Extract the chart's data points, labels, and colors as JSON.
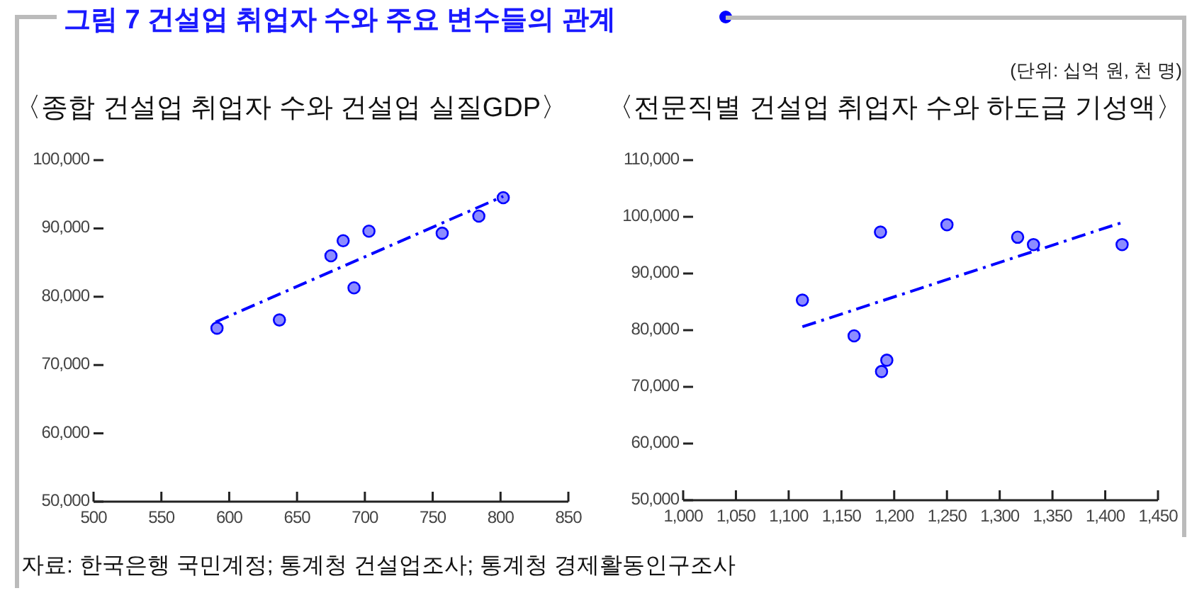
{
  "chart_data": [
    {
      "type": "scatter",
      "title": "〈종합 건설업 취업자 수와 건설업 실질GDP〉",
      "annotations": [
        "그림 7 건설업 취업자 수와 주요 변수들의 관계",
        "자료: 한국은행 국민계정; 통계청 건설업조사; 통계청 경제활동인구조사"
      ],
      "xlim": [
        500,
        850
      ],
      "xticks": [
        500,
        550,
        600,
        650,
        700,
        750,
        800,
        850
      ],
      "ylim": [
        50000,
        100000
      ],
      "yticks": [
        {
          "value": 50000,
          "label": "50,000"
        },
        {
          "value": 60000,
          "label": "60,000"
        },
        {
          "value": 70000,
          "label": "70,000"
        },
        {
          "value": 80000,
          "label": "80,000"
        },
        {
          "value": 90000,
          "label": "90,000"
        },
        {
          "value": 100000,
          "label": "100,000"
        }
      ],
      "series": [
        {
          "type": "scatter",
          "marker": "circle",
          "color": "#8c8cff",
          "x": [
            591,
            637,
            675,
            684,
            692,
            703,
            757,
            784,
            802
          ],
          "values": [
            75400,
            76600,
            86000,
            88200,
            81300,
            89600,
            89300,
            91800,
            94500
          ]
        },
        {
          "type": "line",
          "color": "#0000ff",
          "line_style": "dashed",
          "x": [
            590,
            802
          ],
          "values": [
            76300,
            94700
          ]
        }
      ]
    },
    {
      "type": "scatter",
      "title": "〈전문직별 건설업 취업자 수와 하도급 기성액〉",
      "annotations": [
        "(단위: 십억 원, 천 명)"
      ],
      "xlim": [
        1000,
        1450
      ],
      "xticks": [
        {
          "value": 1000,
          "label": "1,000"
        },
        {
          "value": 1050,
          "label": "1,050"
        },
        {
          "value": 1100,
          "label": "1,100"
        },
        {
          "value": 1150,
          "label": "1,150"
        },
        {
          "value": 1200,
          "label": "1,200"
        },
        {
          "value": 1250,
          "label": "1,250"
        },
        {
          "value": 1300,
          "label": "1,300"
        },
        {
          "value": 1350,
          "label": "1,350"
        },
        {
          "value": 1400,
          "label": "1,400"
        },
        {
          "value": 1450,
          "label": "1,450"
        }
      ],
      "ylim": [
        50000,
        110000
      ],
      "yticks": [
        {
          "value": 50000,
          "label": "50,000"
        },
        {
          "value": 60000,
          "label": "60,000"
        },
        {
          "value": 70000,
          "label": "70,000"
        },
        {
          "value": 80000,
          "label": "80,000"
        },
        {
          "value": 90000,
          "label": "90,000"
        },
        {
          "value": 100000,
          "label": "100,000"
        },
        {
          "value": 110000,
          "label": "110,000"
        }
      ],
      "series": [
        {
          "type": "scatter",
          "marker": "circle",
          "color": "#8c8cff",
          "x": [
            1113,
            1162,
            1187,
            1188,
            1193,
            1250,
            1317,
            1332,
            1416
          ],
          "values": [
            85300,
            79000,
            97300,
            72700,
            74700,
            98600,
            96400,
            95100,
            95100
          ]
        },
        {
          "type": "line",
          "color": "#0000ff",
          "line_style": "dashed",
          "x": [
            1113,
            1416
          ],
          "values": [
            80600,
            99000
          ]
        }
      ]
    }
  ]
}
